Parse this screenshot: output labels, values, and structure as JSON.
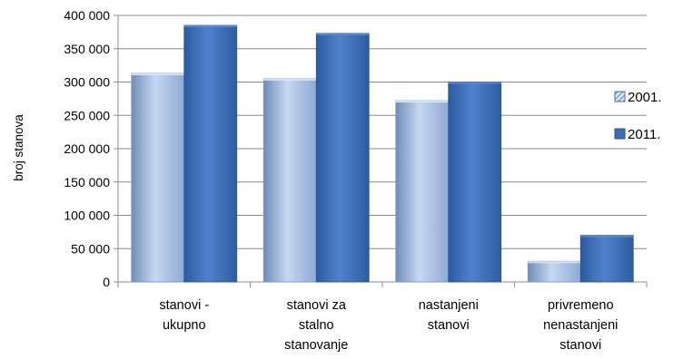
{
  "chart_data": {
    "type": "bar",
    "title": "",
    "xlabel": "",
    "ylabel": "broj stanova",
    "ylim": [
      0,
      400000
    ],
    "yticks": [
      0,
      50000,
      100000,
      150000,
      200000,
      250000,
      300000,
      350000,
      400000
    ],
    "ytick_labels": [
      "0",
      "50 000",
      "100 000",
      "150 000",
      "200 000",
      "250 000",
      "300 000",
      "350 000",
      "400 000"
    ],
    "grid": true,
    "legend_position": "right",
    "categories": [
      [
        "stanovi -",
        "ukupno"
      ],
      [
        "stanovi za",
        "stalno",
        "stanovanje"
      ],
      [
        "nastanjeni",
        "stanovi"
      ],
      [
        "privremeno",
        "nenastanjeni",
        "stanovi"
      ]
    ],
    "series": [
      {
        "name": "2001.",
        "values": [
          313000,
          305000,
          272000,
          31000
        ],
        "color": "#a9c0e3",
        "legend_marker": "hatched"
      },
      {
        "name": "2011.",
        "values": [
          385000,
          373000,
          300000,
          70000
        ],
        "color": "#3d6cb3",
        "legend_marker": "solid"
      }
    ]
  }
}
